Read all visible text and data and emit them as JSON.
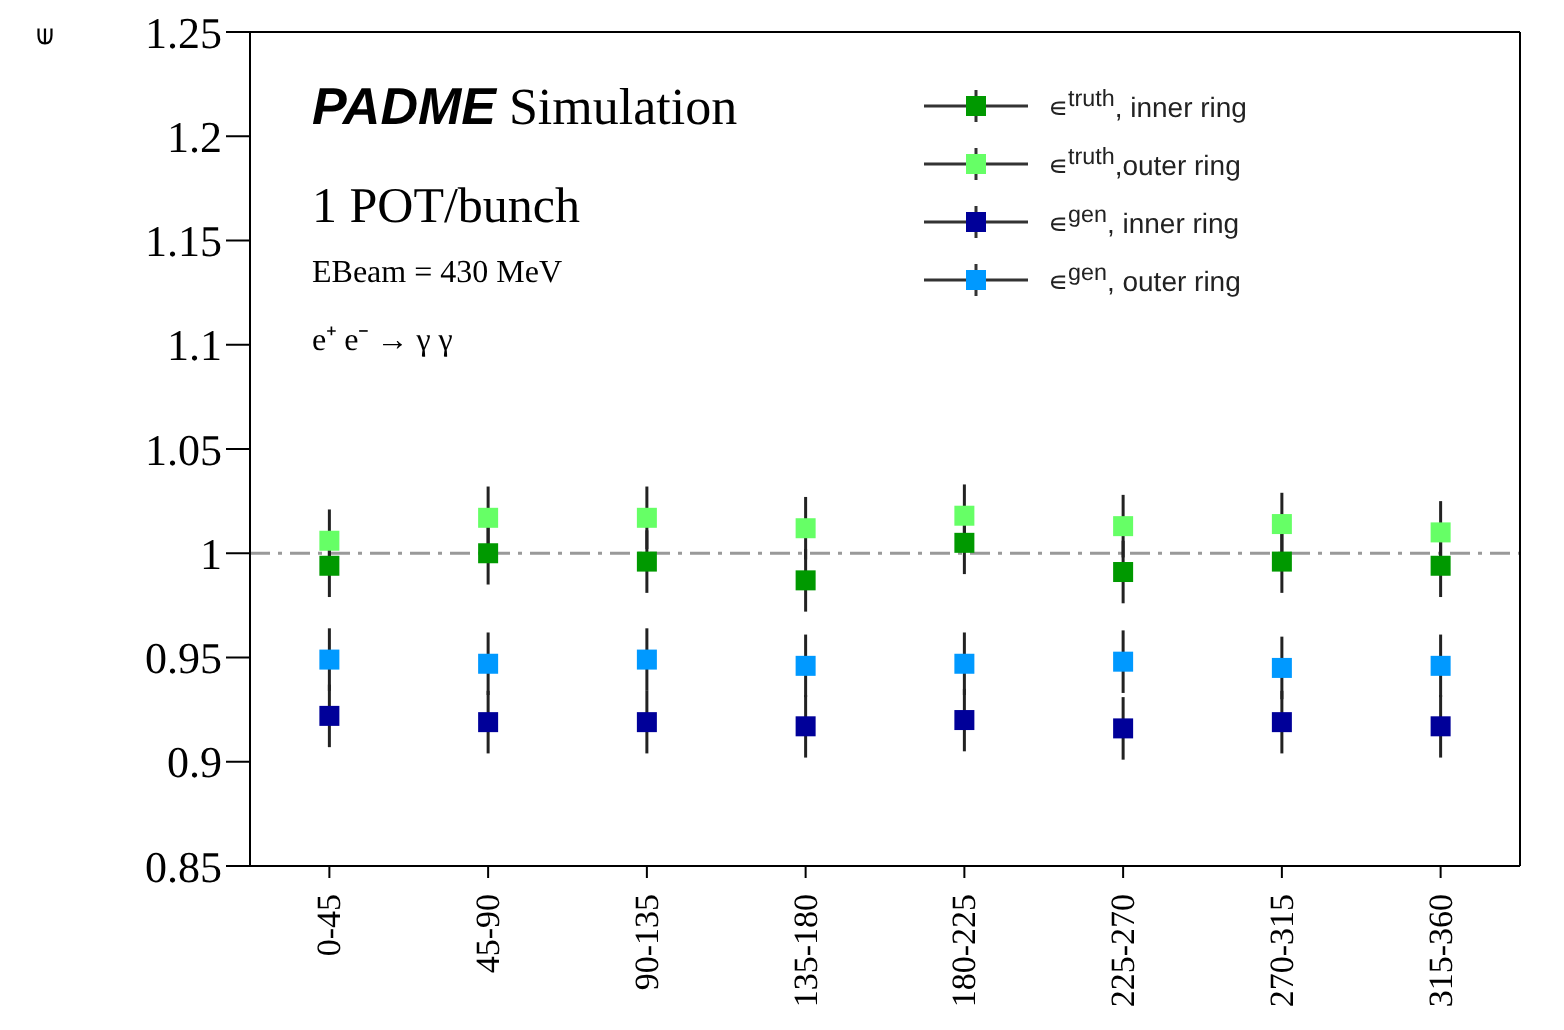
{
  "chart_data": {
    "type": "scatter",
    "ylabel": "∊",
    "categories": [
      "0-45",
      "45-90",
      "90-135",
      "135-180",
      "180-225",
      "225-270",
      "270-315",
      "315-360"
    ],
    "series": [
      {
        "name": "∊$^{truth}$, inner ring",
        "color": "#009900",
        "values": [
          0.994,
          1.0,
          0.996,
          0.987,
          1.005,
          0.991,
          0.996,
          0.994
        ],
        "errors": [
          0.015,
          0.015,
          0.015,
          0.015,
          0.015,
          0.015,
          0.015,
          0.015
        ]
      },
      {
        "name": "∊$^{truth}$,outer ring",
        "color": "#66ff66",
        "values": [
          1.006,
          1.017,
          1.017,
          1.012,
          1.018,
          1.013,
          1.014,
          1.01
        ],
        "errors": [
          0.015,
          0.015,
          0.015,
          0.015,
          0.015,
          0.015,
          0.015,
          0.015
        ]
      },
      {
        "name": "∊$^{gen}$, inner ring",
        "color": "#000099",
        "values": [
          0.922,
          0.919,
          0.919,
          0.917,
          0.92,
          0.916,
          0.919,
          0.917
        ],
        "errors": [
          0.015,
          0.015,
          0.015,
          0.015,
          0.015,
          0.015,
          0.015,
          0.015
        ]
      },
      {
        "name": "∊$^{gen}$, outer ring",
        "color": "#0099ff",
        "values": [
          0.949,
          0.947,
          0.949,
          0.946,
          0.947,
          0.948,
          0.945,
          0.946
        ],
        "errors": [
          0.015,
          0.015,
          0.015,
          0.015,
          0.015,
          0.015,
          0.015,
          0.015
        ]
      }
    ],
    "ylim": [
      0.85,
      1.25
    ],
    "yticks": [
      0.85,
      0.9,
      0.95,
      1,
      1.05,
      1.1,
      1.15,
      1.2,
      1.25
    ],
    "ref_lines": [
      {
        "axis": "y",
        "value": 1,
        "color": "#999999",
        "line_style": "dashdot"
      }
    ],
    "annotations": [
      "PADME Simulation",
      "1 POT/bunch",
      "EBeam = 430 MeV",
      "e⁺ e⁻ → γ γ"
    ],
    "marker": "square",
    "legend": "top right",
    "grid": false
  }
}
